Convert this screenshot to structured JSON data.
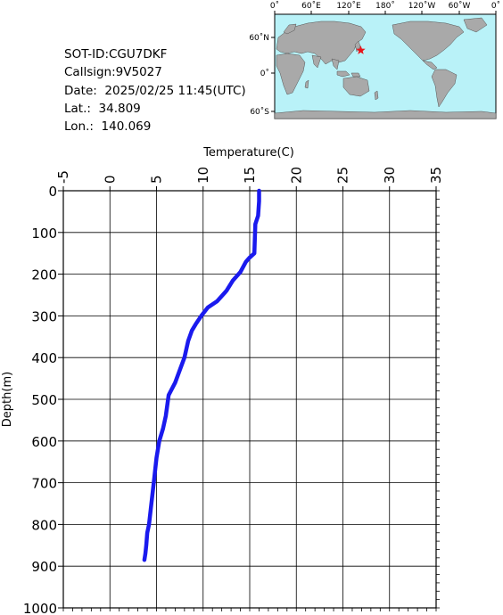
{
  "header": {
    "sot_id": "SOT-ID:CGU7DKF",
    "callsign": "Callsign:9V5027",
    "date": "Date:  2025/02/25 11:45(UTC)",
    "lat": "Lat.:  34.809",
    "lon": "Lon.:  140.069"
  },
  "map": {
    "lon_labels": [
      "0˚",
      "60˚E",
      "120˚E",
      "180˚",
      "120˚W",
      "60˚W",
      "0˚"
    ],
    "lat_labels": [
      "60˚N",
      "0˚",
      "60˚S"
    ],
    "ocean_color": "#b9f2f8",
    "land_color": "#a9a9a9",
    "marker": {
      "lat": 34.809,
      "lon": 140.069,
      "color": "#e8141a",
      "shape": "star"
    }
  },
  "chart_data": {
    "type": "line",
    "xlabel": "Temperature(C)",
    "ylabel": "Depth(m)",
    "xlim": [
      -5,
      35
    ],
    "ylim": [
      1000,
      0
    ],
    "x_ticks": [
      "-5",
      "0",
      "5",
      "10",
      "15",
      "20",
      "25",
      "30",
      "35"
    ],
    "y_ticks": [
      "0",
      "100",
      "200",
      "300",
      "400",
      "500",
      "600",
      "700",
      "800",
      "900",
      "1000"
    ],
    "grid": true,
    "line_color": "#1a1aee",
    "series": [
      {
        "x": [
          16.0,
          16.0,
          15.9,
          15.6,
          15.5,
          15.0,
          14.6,
          14.0,
          13.2,
          12.5,
          11.5,
          10.5,
          9.8,
          9.2,
          8.8,
          8.4,
          8.0,
          7.5,
          7.0,
          6.3,
          6.0,
          5.7,
          5.3,
          5.0,
          4.7,
          4.4,
          4.2,
          4.0,
          3.9,
          3.8,
          3.7
        ],
        "y": [
          0,
          25,
          60,
          80,
          150,
          160,
          170,
          195,
          215,
          240,
          265,
          280,
          300,
          320,
          335,
          360,
          400,
          430,
          460,
          490,
          540,
          570,
          600,
          640,
          700,
          760,
          800,
          820,
          850,
          870,
          885
        ]
      }
    ]
  }
}
